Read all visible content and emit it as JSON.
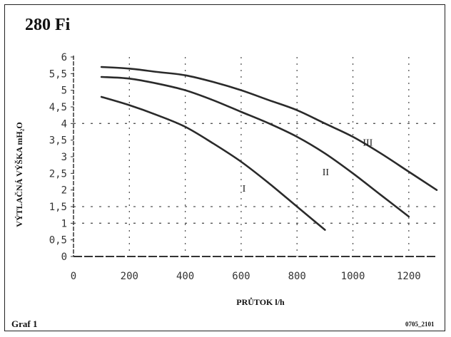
{
  "title": "280 Fi",
  "footer": {
    "left": "Graf 1",
    "right": "0705_2101"
  },
  "chart_data": {
    "type": "line",
    "xlabel": "PRŮTOK l/h",
    "ylabel": "VÝTLAČNÁ VÝŠKA  mH₂O",
    "xlim": [
      0,
      1300
    ],
    "ylim": [
      0,
      6
    ],
    "xticks": [
      "0",
      "200",
      "400",
      "600",
      "800",
      "1000",
      "1200"
    ],
    "yticks": [
      "0",
      "0,5",
      "1",
      "1,5",
      "2",
      "2,5",
      "3",
      "3,5",
      "4",
      "4,5",
      "5",
      "5,5",
      "6"
    ],
    "grid": true,
    "series": [
      {
        "name": "I",
        "x": [
          100,
          200,
          300,
          400,
          500,
          600,
          700,
          800,
          900
        ],
        "values": [
          4.8,
          4.55,
          4.25,
          3.9,
          3.4,
          2.85,
          2.2,
          1.5,
          0.8
        ]
      },
      {
        "name": "II",
        "x": [
          100,
          200,
          300,
          400,
          500,
          600,
          700,
          800,
          900,
          1000,
          1100,
          1200
        ],
        "values": [
          5.4,
          5.35,
          5.2,
          5.0,
          4.7,
          4.35,
          4.0,
          3.6,
          3.1,
          2.5,
          1.85,
          1.2
        ]
      },
      {
        "name": "III",
        "x": [
          100,
          200,
          300,
          400,
          500,
          600,
          700,
          800,
          900,
          1000,
          1100,
          1200,
          1300
        ],
        "values": [
          5.7,
          5.65,
          5.55,
          5.45,
          5.25,
          5.0,
          4.7,
          4.4,
          4.0,
          3.6,
          3.1,
          2.55,
          2.0
        ]
      }
    ],
    "curve_labels": [
      "I",
      "II",
      "III"
    ]
  }
}
